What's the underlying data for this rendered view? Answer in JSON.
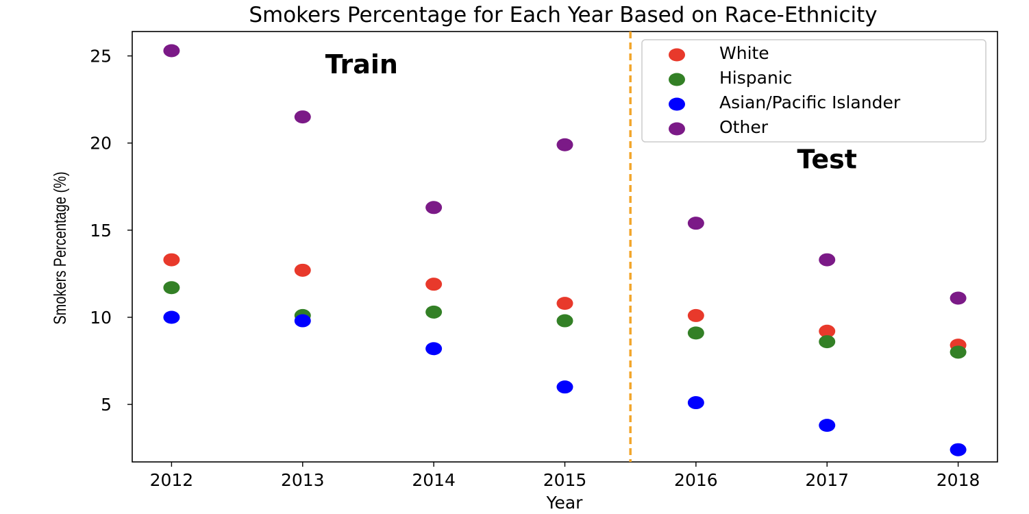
{
  "chart_data": {
    "type": "scatter",
    "title": "Smokers Percentage for Each Year Based on Race-Ethnicity",
    "xlabel": "Year",
    "ylabel": "Smokers Percentage (%)",
    "x": [
      2012,
      2013,
      2014,
      2015,
      2016,
      2017,
      2018
    ],
    "x_ticks": [
      "2012",
      "2013",
      "2014",
      "2015",
      "2016",
      "2017",
      "2018"
    ],
    "y_ticks": [
      "5",
      "10",
      "15",
      "20",
      "25"
    ],
    "xlim": [
      2011.7,
      2018.3
    ],
    "ylim": [
      1.7,
      26.4
    ],
    "series": [
      {
        "name": "White",
        "color": "#e8392b",
        "values": [
          13.3,
          12.7,
          11.9,
          10.8,
          10.1,
          9.2,
          8.4
        ]
      },
      {
        "name": "Hispanic",
        "color": "#338026",
        "values": [
          11.7,
          10.1,
          10.3,
          9.8,
          9.1,
          8.6,
          8.0
        ]
      },
      {
        "name": "Asian/Pacific Islander",
        "color": "#0000ff",
        "values": [
          10.0,
          9.8,
          8.2,
          6.0,
          5.1,
          3.8,
          2.4
        ]
      },
      {
        "name": "Other",
        "color": "#7b1a87",
        "values": [
          25.3,
          21.5,
          16.3,
          19.9,
          15.4,
          13.3,
          11.1
        ]
      }
    ],
    "split_line": {
      "x": 2015.5,
      "color": "#f2a52a",
      "style": "dashed"
    },
    "annotations": [
      {
        "text": "Train",
        "x": 2013.45,
        "y": 24.0
      },
      {
        "text": "Test",
        "x": 2017.0,
        "y": 18.55
      }
    ],
    "legend_placement": "top-right",
    "grid": false
  }
}
